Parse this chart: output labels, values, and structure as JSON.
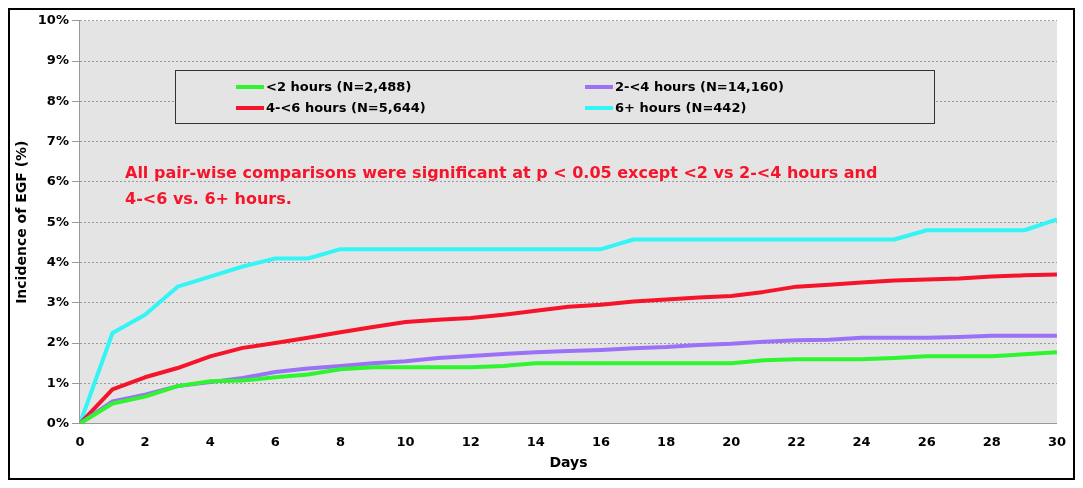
{
  "chart_data": {
    "type": "line",
    "xlabel": "Days",
    "ylabel": "Incidence of EGF (%)",
    "legend": "top",
    "grid": "y",
    "marker": "none",
    "line_style": "solid",
    "annotations": [
      "All pair-wise comparisons were significant at p < 0.05 except <2 vs 2-<4 hours and 4-<6 vs. 6+ hours."
    ],
    "x": [
      0,
      1,
      2,
      3,
      4,
      5,
      6,
      7,
      8,
      9,
      10,
      11,
      12,
      13,
      14,
      15,
      16,
      17,
      18,
      19,
      20,
      21,
      22,
      23,
      24,
      25,
      26,
      27,
      28,
      29,
      30
    ],
    "xlim": [
      0,
      30
    ],
    "xticks": [
      0,
      2,
      4,
      6,
      8,
      10,
      12,
      14,
      16,
      18,
      20,
      22,
      24,
      26,
      28,
      30
    ],
    "ylim": [
      0,
      10
    ],
    "yticks": [
      {
        "value": 0,
        "label": "0%"
      },
      {
        "value": 1,
        "label": "1%"
      },
      {
        "value": 2,
        "label": "2%"
      },
      {
        "value": 3,
        "label": "3%"
      },
      {
        "value": 4,
        "label": "4%"
      },
      {
        "value": 5,
        "label": "5%"
      },
      {
        "value": 6,
        "label": "6%"
      },
      {
        "value": 7,
        "label": "7%"
      },
      {
        "value": 8,
        "label": "8%"
      },
      {
        "value": 9,
        "label": "9%"
      },
      {
        "value": 10,
        "label": "10%"
      }
    ],
    "series": [
      {
        "name": "<2 hours (N=2,488)",
        "color": "#2ef52e",
        "values": [
          0,
          0.5,
          0.67,
          0.93,
          1.05,
          1.07,
          1.15,
          1.22,
          1.35,
          1.4,
          1.4,
          1.4,
          1.4,
          1.43,
          1.5,
          1.5,
          1.5,
          1.5,
          1.5,
          1.5,
          1.5,
          1.57,
          1.6,
          1.6,
          1.6,
          1.63,
          1.67,
          1.67,
          1.67,
          1.72,
          1.77
        ]
      },
      {
        "name": "2-<4 hours (N=14,160)",
        "color": "#9b72f7",
        "values": [
          0,
          0.55,
          0.72,
          0.93,
          1.03,
          1.13,
          1.28,
          1.37,
          1.43,
          1.5,
          1.55,
          1.63,
          1.68,
          1.73,
          1.77,
          1.8,
          1.83,
          1.87,
          1.9,
          1.95,
          1.98,
          2.03,
          2.07,
          2.08,
          2.13,
          2.13,
          2.13,
          2.15,
          2.18,
          2.18,
          2.18
        ]
      },
      {
        "name": "4-<6 hours (N=5,644)",
        "color": "#f5142a",
        "values": [
          0,
          0.85,
          1.15,
          1.38,
          1.67,
          1.88,
          2.0,
          2.13,
          2.27,
          2.4,
          2.52,
          2.58,
          2.62,
          2.7,
          2.8,
          2.9,
          2.95,
          3.03,
          3.08,
          3.13,
          3.17,
          3.27,
          3.4,
          3.45,
          3.5,
          3.55,
          3.58,
          3.6,
          3.65,
          3.68,
          3.7
        ]
      },
      {
        "name": "6+ hours (N=442)",
        "color": "#33f5f5",
        "values": [
          0,
          2.25,
          2.7,
          3.4,
          3.65,
          3.9,
          4.1,
          4.1,
          4.33,
          4.33,
          4.33,
          4.33,
          4.33,
          4.33,
          4.33,
          4.33,
          4.33,
          4.57,
          4.57,
          4.57,
          4.57,
          4.57,
          4.57,
          4.57,
          4.57,
          4.57,
          4.8,
          4.8,
          4.8,
          4.8,
          5.07
        ]
      }
    ]
  }
}
